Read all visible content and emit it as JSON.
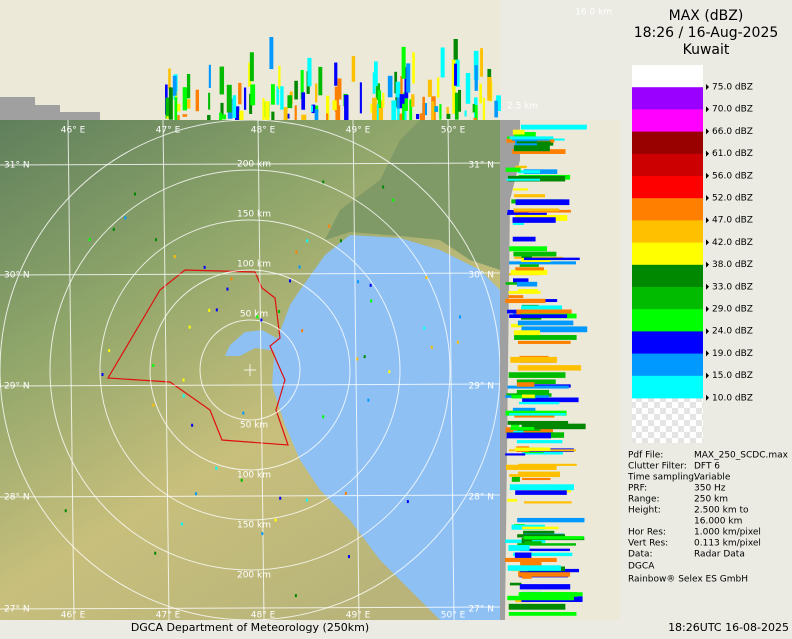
{
  "title": {
    "product": "MAX (dBZ)",
    "time": "18:26 / 16-Aug-2025",
    "site": "Kuwait"
  },
  "legend": [
    {
      "label": "75.0 dBZ",
      "color": "#ffffff"
    },
    {
      "label": "70.0 dBZ",
      "color": "#9900ff"
    },
    {
      "label": "66.0 dBZ",
      "color": "#ff00ff"
    },
    {
      "label": "61.0 dBZ",
      "color": "#990000"
    },
    {
      "label": "56.0 dBZ",
      "color": "#cc0000"
    },
    {
      "label": "52.0 dBZ",
      "color": "#ff0000"
    },
    {
      "label": "47.0 dBZ",
      "color": "#ff8000"
    },
    {
      "label": "42.0 dBZ",
      "color": "#ffc000"
    },
    {
      "label": "38.0 dBZ",
      "color": "#ffff00"
    },
    {
      "label": "33.0 dBZ",
      "color": "#008800"
    },
    {
      "label": "29.0 dBZ",
      "color": "#00bb00"
    },
    {
      "label": "24.0 dBZ",
      "color": "#00ff00"
    },
    {
      "label": "19.0 dBZ",
      "color": "#0000ff"
    },
    {
      "label": "15.0 dBZ",
      "color": "#0099ff"
    },
    {
      "label": "10.0 dBZ",
      "color": "#00ffff"
    }
  ],
  "info": [
    {
      "key": "Pdf File:",
      "value": [
        "MAX_250_SCDC.max"
      ]
    },
    {
      "key": "Clutter Filter:",
      "value": [
        "DFT 6"
      ]
    },
    {
      "key": "Time sampling:",
      "value": [
        "Variable"
      ]
    },
    {
      "key": "PRF:",
      "value": [
        "350 Hz"
      ]
    },
    {
      "key": "Range:",
      "value": [
        "250 km"
      ]
    },
    {
      "key": "Height:",
      "value": [
        "2.500 km to",
        "16.000 km"
      ]
    },
    {
      "key": "Hor Res:",
      "value": [
        "1.000 km/pixel"
      ]
    },
    {
      "key": "Vert Res:",
      "value": [
        "0.113 km/pixel"
      ]
    },
    {
      "key": "Data:",
      "value": [
        "Radar Data"
      ]
    }
  ],
  "credits": [
    "DGCA",
    "Rainbow® Selex ES GmbH"
  ],
  "map": {
    "lon_labels": [
      "46° E",
      "47° E",
      "48° E",
      "49° E",
      "50° E"
    ],
    "lat_labels": [
      "31° N",
      "30° N",
      "29° N",
      "28° N",
      "27° N"
    ],
    "range_labels_top": [
      "50 km",
      "100 km",
      "150 km",
      "200 km"
    ],
    "range_labels_bottom": [
      "50 km",
      "100 km",
      "150 km",
      "200 km"
    ]
  },
  "section": {
    "top_height": "16.0 km",
    "bottom_height": "2.5 km"
  },
  "footer": {
    "left": "DGCA Department of Meteorology (250km)",
    "right": "18:26UTC 16-08-2025"
  }
}
